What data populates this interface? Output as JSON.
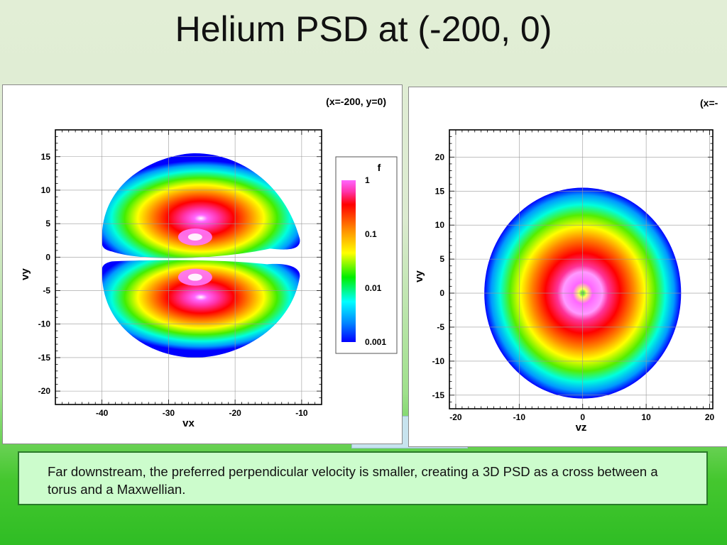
{
  "title": "Helium PSD at (-200, 0)",
  "caption": "Far downstream, the preferred perpendicular velocity is smaller, creating a 3D PSD as a cross between a torus and a Maxwellian.",
  "chart_data": [
    {
      "type": "heatmap",
      "annotation": "(x=-200, y=0)",
      "xlabel": "vx",
      "ylabel": "vy",
      "xlim": [
        -47,
        -7
      ],
      "ylim": [
        -22,
        19
      ],
      "xticks": [
        -40,
        -30,
        -20,
        -10
      ],
      "yticks": [
        15,
        10,
        5,
        0,
        -5,
        -10,
        -15,
        -20
      ],
      "grid": true,
      "shape": "two-lobed distribution split along vy=0",
      "center_vx": -26,
      "peaks": [
        {
          "vx": -26,
          "vy": 3,
          "f": 1
        },
        {
          "vx": -26,
          "vy": -3,
          "f": 1
        }
      ],
      "outer_extent": {
        "vx": [
          -40,
          -10.5
        ],
        "vy": [
          -15,
          15.5
        ]
      },
      "colorbar": {
        "title": "f",
        "scale": "log",
        "range": [
          0.001,
          1
        ],
        "labels": [
          "1",
          "0.1",
          "0.01",
          "0.001"
        ],
        "colors": [
          "#ff66ff",
          "#ff0000",
          "#ff8800",
          "#ffff00",
          "#00ee00",
          "#00ffff",
          "#0000ff"
        ]
      }
    },
    {
      "type": "heatmap",
      "annotation": "(x=-",
      "xlabel": "vz",
      "ylabel": "vy",
      "xlim": [
        -21,
        20.5
      ],
      "ylim": [
        -17,
        24
      ],
      "xticks": [
        -20,
        -10,
        0,
        10,
        20
      ],
      "yticks": [
        20,
        15,
        10,
        5,
        0,
        -5,
        -10,
        -15
      ],
      "grid": true,
      "shape": "circular distribution centered at origin",
      "center": [
        0,
        0
      ],
      "radius": 15.5,
      "peak_f": 1
    }
  ]
}
